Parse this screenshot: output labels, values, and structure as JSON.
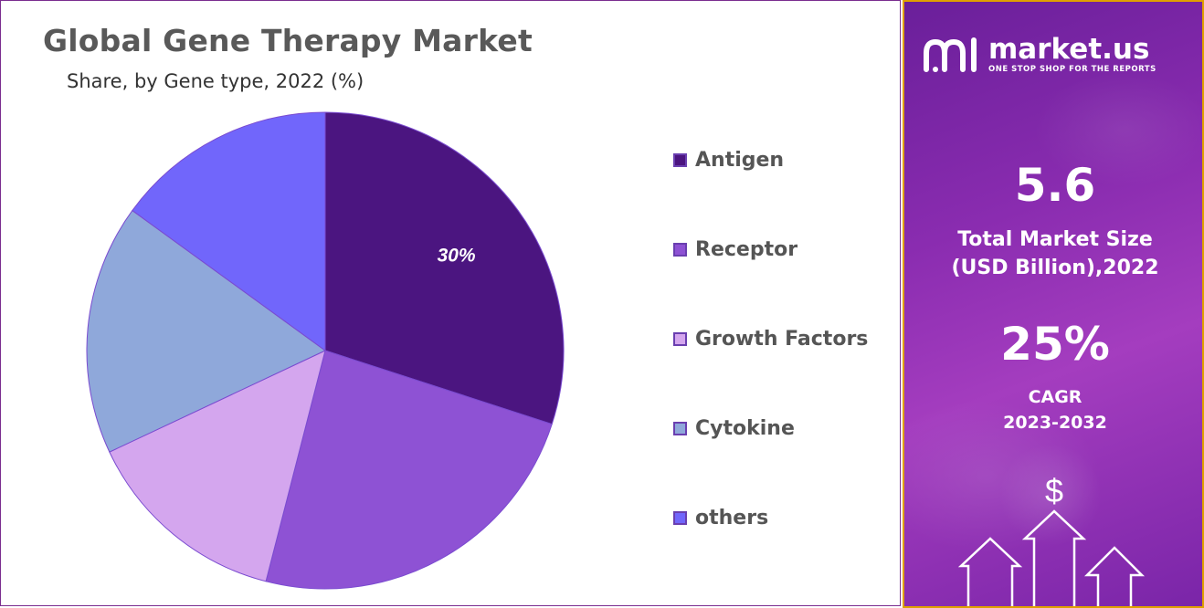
{
  "chart": {
    "title": "Global Gene Therapy Market",
    "subtitle": "Share, by Gene type, 2022 (%)"
  },
  "chart_data": {
    "type": "pie",
    "title": "Global Gene Therapy Market",
    "subtitle": "Share, by Gene type, 2022 (%)",
    "labels": [
      "Antigen",
      "Receptor",
      "Growth Factors",
      "Cytokine",
      "others"
    ],
    "values": [
      30,
      24,
      14,
      17,
      15
    ],
    "colors": [
      "#4b1580",
      "#8e52d4",
      "#d4a6ee",
      "#8fa8da",
      "#7166fb"
    ],
    "data_labels": [
      "30%",
      "",
      "",
      "",
      ""
    ],
    "legend_position": "right",
    "start_angle": "12 o'clock",
    "direction": "clockwise"
  },
  "sidebar": {
    "brand_name": "market.us",
    "brand_tagline": "ONE STOP SHOP FOR THE REPORTS",
    "market_size_value": "5.6",
    "market_size_label_1": "Total Market Size",
    "market_size_label_2": "(USD Billion),2022",
    "cagr_value": "25%",
    "cagr_label": "CAGR",
    "cagr_period": "2023-2032",
    "dollar_symbol": "$",
    "accent_border": "#e0a000"
  }
}
